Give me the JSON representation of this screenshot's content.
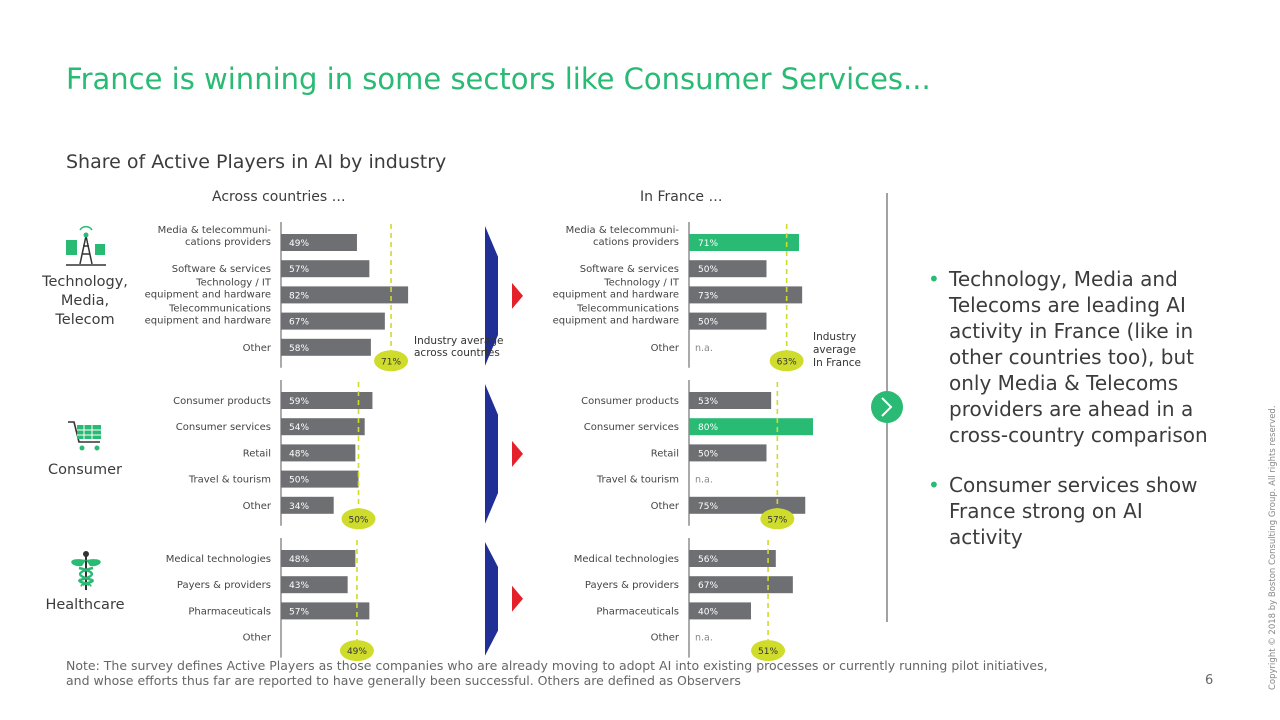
{
  "title": "France is winning in some sectors like Consumer Services...",
  "subtitle": "Share of Active Players in AI by industry",
  "columns": {
    "across": "Across countries …",
    "france": "In France …"
  },
  "colors": {
    "green": "#29ba74",
    "grey": "#6e6f73",
    "avg": "#cfdc2b",
    "navy": "#1f2f95",
    "red": "#e4202a"
  },
  "bullets": [
    "Technology, Media and Telecoms are leading AI activity in France (like in other countries too), but only Media & Telecoms providers are ahead in a cross-country comparison",
    "Consumer services show France strong on AI activity"
  ],
  "note": "Note: The survey defines Active Players as those companies who are already moving to adopt AI into existing processes or currently running pilot initiatives, and whose efforts thus far are reported to have generally been successful. Others are defined as Observers",
  "page_number": "6",
  "copyright": "Copyright © 2018 by Boston Consulting Group. All rights reserved.",
  "chart_data": {
    "type": "bar",
    "unit": "%",
    "groups": [
      {
        "name": "Technology, Media, Telecom",
        "icon": "telecom-tower-icon",
        "categories": [
          "Media & telecommuni- cations providers",
          "Software & services",
          "Technology / IT equipment and hardware",
          "Telecommunications equipment and hardware",
          "Other"
        ],
        "across": [
          49,
          57,
          82,
          67,
          58
        ],
        "france": [
          71,
          50,
          73,
          50,
          null
        ],
        "france_highlight": [
          true,
          false,
          false,
          false,
          false
        ],
        "avg_across": 71,
        "avg_france": 63
      },
      {
        "name": "Consumer",
        "icon": "shopping-cart-icon",
        "categories": [
          "Consumer products",
          "Consumer services",
          "Retail",
          "Travel & tourism",
          "Other"
        ],
        "across": [
          59,
          54,
          48,
          50,
          34
        ],
        "france": [
          53,
          80,
          50,
          null,
          75
        ],
        "france_highlight": [
          false,
          true,
          false,
          false,
          false
        ],
        "avg_across": 50,
        "avg_france": 57
      },
      {
        "name": "Healthcare",
        "icon": "caduceus-icon",
        "categories": [
          "Medical technologies",
          "Payers & providers",
          "Pharmaceuticals",
          "Other"
        ],
        "across": [
          48,
          43,
          57,
          null
        ],
        "france": [
          56,
          67,
          40,
          null
        ],
        "france_highlight": [
          false,
          false,
          false,
          false
        ],
        "avg_across": 49,
        "avg_france": 51
      }
    ],
    "na_label": "n.a.",
    "avg_label_across": "Industry average across countries",
    "avg_label_france": "Industry average In France"
  }
}
